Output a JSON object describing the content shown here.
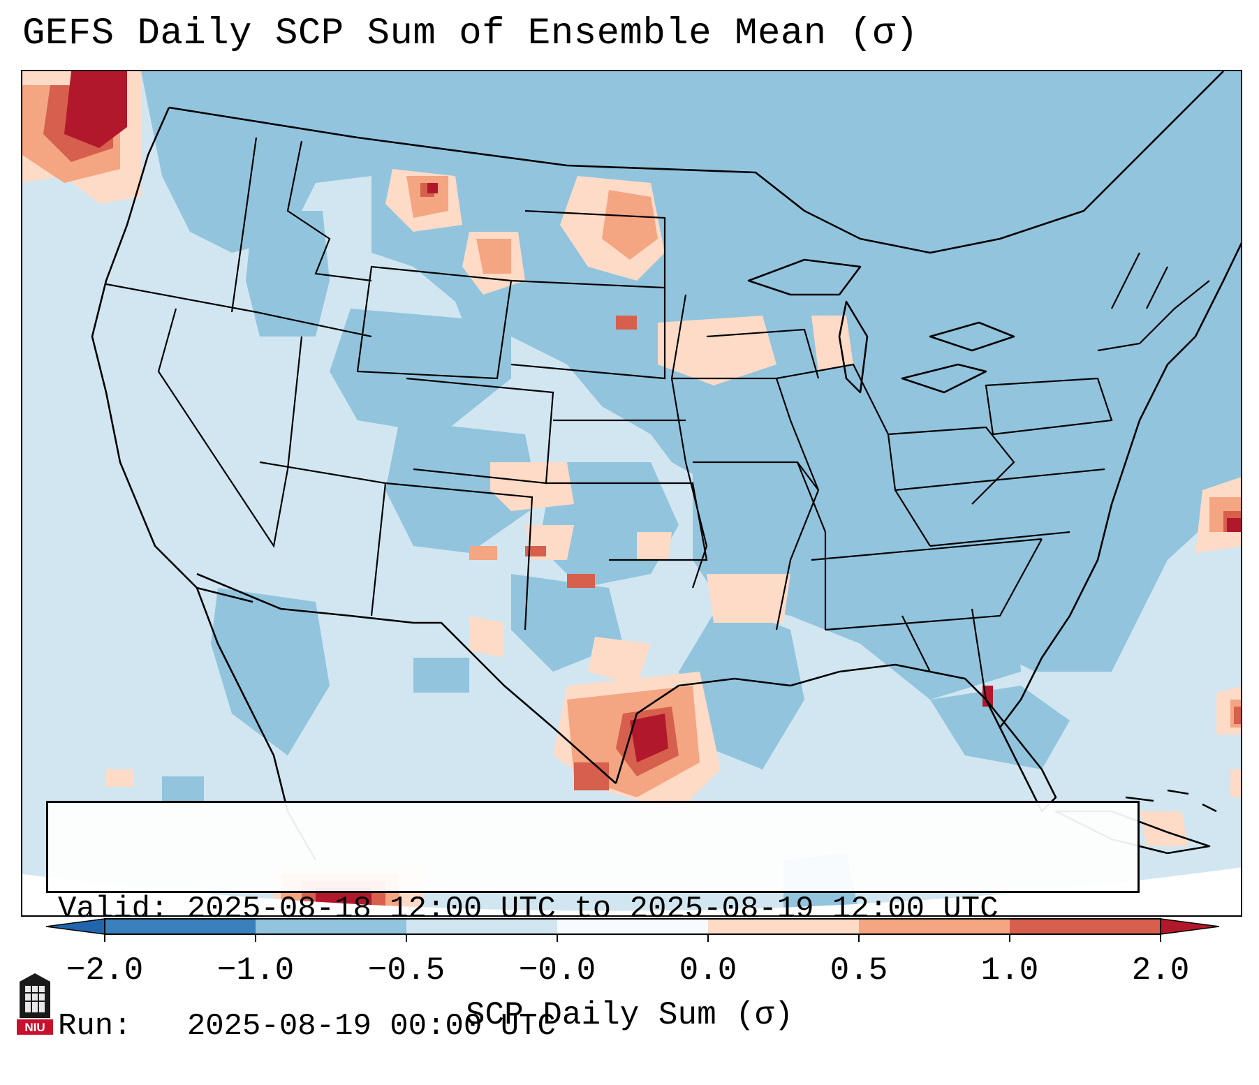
{
  "title": "GEFS Daily SCP Sum of Ensemble Mean (σ)",
  "info": {
    "valid_line": "Valid: 2025-08-18 12:00 UTC to 2025-08-19 12:00 UTC",
    "run_line": "Run:   2025-08-19 00:00 UTC"
  },
  "colorbar": {
    "label": "SCP Daily Sum (σ)",
    "ticks": [
      "−2.0",
      "−1.0",
      "−0.5",
      "−0.0",
      "0.0",
      "0.5",
      "1.0",
      "2.0"
    ],
    "colors": [
      "#3a80bd",
      "#92c4dd",
      "#d1e6f1",
      "#f7fbff",
      "#fddbc7",
      "#f4a582",
      "#d6604d",
      "#b2182b"
    ]
  },
  "logo_text": "NIU",
  "colors": {
    "dark_blue": "#3a80bd",
    "mid_blue": "#92c4dd",
    "light_blue": "#d1e6f1",
    "near_white": "#f7fbff",
    "light_red": "#fddbc7",
    "salmon": "#f4a582",
    "red": "#d6604d",
    "dark_red": "#b2182b"
  }
}
